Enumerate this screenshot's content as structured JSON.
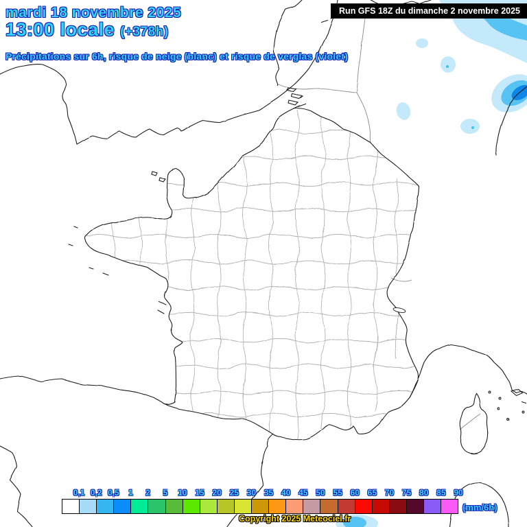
{
  "title": {
    "date": "mardi 18 novembre 2025",
    "time": "13:00 locale",
    "offset": "(+378h)",
    "subtitle": "Précipitations sur 6h, risque de neige (blanc) et risque de verglas (violet)"
  },
  "banner": {
    "text": "Run GFS 18Z du dimanche 2 novembre 2025"
  },
  "footer": {
    "copyright": "Copyright 2025 Meteociel.fr"
  },
  "legend": {
    "unit": "(mm/6h)",
    "ticks": [
      "0,1",
      "0,2",
      "0,5",
      "1",
      "2",
      "5",
      "10",
      "15",
      "20",
      "25",
      "30",
      "35",
      "40",
      "45",
      "50",
      "55",
      "60",
      "65",
      "70",
      "75",
      "80",
      "85",
      "90"
    ],
    "colors": [
      "#ffffff",
      "#a6dcf7",
      "#35b6f0",
      "#0b8cf8",
      "#00ec96",
      "#2cc46a",
      "#58bc3a",
      "#5ce800",
      "#abe83c",
      "#b7c626",
      "#d8e633",
      "#cc9808",
      "#fc9814",
      "#fc9c74",
      "#c69aa2",
      "#c66b2e",
      "#c23a30",
      "#fa0a00",
      "#c80a04",
      "#8a0a12",
      "#54092a",
      "#8a5af6",
      "#f95af8"
    ]
  },
  "colors": {
    "precip_light": "#c4e9fb",
    "precip_medium": "#57c3f2",
    "precip_dark": "#0e86e8",
    "precip_dot": "#35c6f0",
    "title_fill": "#2fd4f6",
    "title_outline": "#1a1ab8",
    "banner_bg": "#000000",
    "banner_text": "#ffffff",
    "copyright_color": "#ffd800"
  }
}
